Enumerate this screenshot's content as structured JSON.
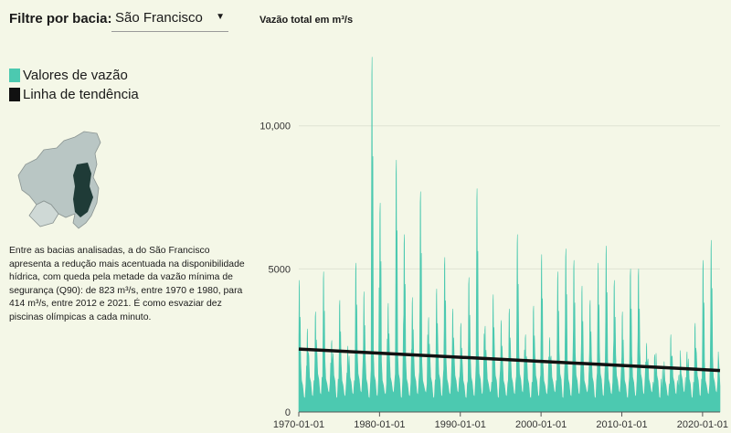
{
  "filter": {
    "label": "Filtre por bacia:",
    "selected": "São Francisco"
  },
  "legend": [
    {
      "label": "Valores de vazão",
      "color": "#4cc9b0"
    },
    {
      "label": "Linha de tendência",
      "color": "#111111"
    }
  ],
  "map_icon": "sao-francisco-basin-map",
  "description": "Entre as bacias analisadas, a do São Francisco apresenta a redução mais acentuada na disponibilidade hídrica, com queda pela metade da vazão mínima de segurança (Q90): de 823 m³/s, entre 1970 e 1980, para 414 m³/s, entre 2012 e 2021. É como esvaziar dez piscinas olímpicas a cada minuto.",
  "chart_data": {
    "type": "area",
    "title": "Vazão total em m³/s",
    "xlabel": "",
    "ylabel": "",
    "xlim": [
      "1970-01-01",
      "2022-03-01"
    ],
    "ylim": [
      0,
      12800
    ],
    "x_ticks": [
      "1970-01-01",
      "1980-01-01",
      "1990-01-01",
      "2000-01-01",
      "2010-01-01",
      "2020-01-01"
    ],
    "y_ticks": [
      {
        "value": 0,
        "label": "0"
      },
      {
        "value": 5000,
        "label": "5000"
      },
      {
        "value": 10000,
        "label": "10,000"
      }
    ],
    "grid": true,
    "series": [
      {
        "name": "Valores de vazão",
        "color": "#4cc9b0",
        "annual_peaks": [
          {
            "year": 1970,
            "peak": 4600
          },
          {
            "year": 1971,
            "peak": 2900
          },
          {
            "year": 1972,
            "peak": 3500
          },
          {
            "year": 1973,
            "peak": 4900
          },
          {
            "year": 1974,
            "peak": 2500
          },
          {
            "year": 1975,
            "peak": 3900
          },
          {
            "year": 1976,
            "peak": 2300
          },
          {
            "year": 1977,
            "peak": 5200
          },
          {
            "year": 1978,
            "peak": 4200
          },
          {
            "year": 1979,
            "peak": 12400
          },
          {
            "year": 1980,
            "peak": 7300
          },
          {
            "year": 1981,
            "peak": 3800
          },
          {
            "year": 1982,
            "peak": 8800
          },
          {
            "year": 1983,
            "peak": 6200
          },
          {
            "year": 1984,
            "peak": 4000
          },
          {
            "year": 1985,
            "peak": 7700
          },
          {
            "year": 1986,
            "peak": 3300
          },
          {
            "year": 1987,
            "peak": 4300
          },
          {
            "year": 1988,
            "peak": 5400
          },
          {
            "year": 1989,
            "peak": 3600
          },
          {
            "year": 1990,
            "peak": 3100
          },
          {
            "year": 1991,
            "peak": 4700
          },
          {
            "year": 1992,
            "peak": 7800
          },
          {
            "year": 1993,
            "peak": 3000
          },
          {
            "year": 1994,
            "peak": 4100
          },
          {
            "year": 1995,
            "peak": 3200
          },
          {
            "year": 1996,
            "peak": 3600
          },
          {
            "year": 1997,
            "peak": 6200
          },
          {
            "year": 1998,
            "peak": 2700
          },
          {
            "year": 1999,
            "peak": 3700
          },
          {
            "year": 2000,
            "peak": 5500
          },
          {
            "year": 2001,
            "peak": 2600
          },
          {
            "year": 2002,
            "peak": 4900
          },
          {
            "year": 2003,
            "peak": 5700
          },
          {
            "year": 2004,
            "peak": 5300
          },
          {
            "year": 2005,
            "peak": 4400
          },
          {
            "year": 2006,
            "peak": 3900
          },
          {
            "year": 2007,
            "peak": 5200
          },
          {
            "year": 2008,
            "peak": 5800
          },
          {
            "year": 2009,
            "peak": 4600
          },
          {
            "year": 2010,
            "peak": 3500
          },
          {
            "year": 2011,
            "peak": 5000
          },
          {
            "year": 2012,
            "peak": 5000
          },
          {
            "year": 2013,
            "peak": 2400
          },
          {
            "year": 2014,
            "peak": 2000
          },
          {
            "year": 2015,
            "peak": 1500
          },
          {
            "year": 2016,
            "peak": 2700
          },
          {
            "year": 2017,
            "peak": 1300
          },
          {
            "year": 2018,
            "peak": 2100
          },
          {
            "year": 2019,
            "peak": 3100
          },
          {
            "year": 2020,
            "peak": 5300
          },
          {
            "year": 2021,
            "peak": 6000
          }
        ]
      },
      {
        "name": "Linha de tendência",
        "color": "#111111",
        "points": [
          {
            "x": "1970-01-01",
            "y": 2200
          },
          {
            "x": "2022-03-01",
            "y": 1450
          }
        ]
      }
    ]
  }
}
